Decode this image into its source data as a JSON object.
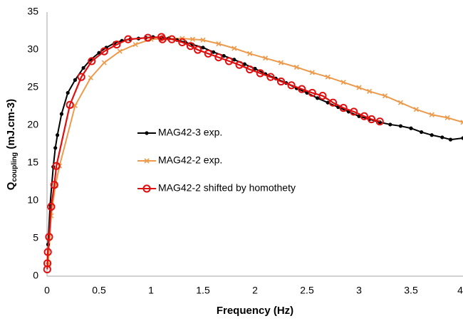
{
  "chart_data": {
    "type": "line",
    "x_label": "Frequency (Hz)",
    "y_label": {
      "main": "Q",
      "sub": "coupling",
      "rest": " (mJ.cm-3)"
    },
    "xlim": [
      0,
      4
    ],
    "ylim": [
      0,
      35
    ],
    "xticks": [
      0,
      0.5,
      1,
      1.5,
      2,
      2.5,
      3,
      3.5,
      4
    ],
    "yticks": [
      0,
      5,
      10,
      15,
      20,
      25,
      30,
      35
    ],
    "grid": false,
    "legend": "center-left",
    "series": [
      {
        "name": "MAG42-3 exp.",
        "color": "#000000",
        "marker": "dot",
        "x": [
          0.01,
          0.03,
          0.06,
          0.08,
          0.1,
          0.14,
          0.2,
          0.27,
          0.35,
          0.42,
          0.5,
          0.57,
          0.65,
          0.72,
          0.8,
          0.88,
          0.95,
          1.02,
          1.1,
          1.17,
          1.25,
          1.33,
          1.4,
          1.5,
          1.6,
          1.7,
          1.8,
          1.9,
          2.0,
          2.1,
          2.2,
          2.3,
          2.4,
          2.5,
          2.6,
          2.7,
          2.8,
          2.9,
          3.0,
          3.1,
          3.2,
          3.3,
          3.4,
          3.5,
          3.6,
          3.7,
          3.8,
          3.88,
          4.0
        ],
        "values": [
          4.2,
          9.5,
          14.5,
          17,
          18.7,
          21.5,
          24.3,
          26,
          27.6,
          28.7,
          29.6,
          30.3,
          30.9,
          31.2,
          31.4,
          31.5,
          31.6,
          31.7,
          31.6,
          31.5,
          31.3,
          31,
          30.7,
          30.3,
          29.7,
          29.2,
          28.7,
          28.1,
          27.5,
          26.8,
          26.2,
          25.6,
          24.9,
          24.3,
          23.6,
          23,
          22.4,
          21.8,
          21.2,
          20.8,
          20.4,
          20.1,
          19.9,
          19.6,
          19.1,
          18.7,
          18.4,
          18.1,
          18.3
        ]
      },
      {
        "name": "MAG42-2 exp.",
        "color": "#ed9a4c",
        "marker": "x",
        "x": [
          0.01,
          0.04,
          0.08,
          0.12,
          0.27,
          0.42,
          0.55,
          0.7,
          0.85,
          1.0,
          1.15,
          1.3,
          1.4,
          1.5,
          1.65,
          1.8,
          1.95,
          2.1,
          2.25,
          2.4,
          2.55,
          2.7,
          2.85,
          3.0,
          3.1,
          3.25,
          3.4,
          3.55,
          3.7,
          3.85,
          4.0
        ],
        "values": [
          1.5,
          8,
          12,
          14.6,
          22.6,
          26.3,
          28.3,
          29.8,
          30.7,
          31.4,
          31.5,
          31.5,
          31.4,
          31.3,
          30.8,
          30.2,
          29.5,
          28.9,
          28.3,
          27.7,
          27.0,
          26.4,
          25.7,
          25.0,
          24.5,
          23.9,
          23.0,
          22.1,
          21.4,
          21.0,
          20.4
        ]
      },
      {
        "name": "MAG42-2 shifted by homothety",
        "color": "#e01010",
        "marker": "open-circle",
        "x": [
          0.002,
          0.004,
          0.008,
          0.02,
          0.04,
          0.07,
          0.09,
          0.22,
          0.33,
          0.43,
          0.55,
          0.67,
          0.78,
          0.97,
          1.1,
          1.11,
          1.2,
          1.3,
          1.38,
          1.45,
          1.55,
          1.65,
          1.75,
          1.85,
          1.95,
          2.05,
          2.15,
          2.25,
          2.35,
          2.45,
          2.55,
          2.65,
          2.75,
          2.85,
          2.95,
          3.05,
          3.12,
          3.2
        ],
        "values": [
          0.9,
          1.7,
          3.2,
          5.2,
          9.2,
          12.1,
          14.6,
          22.7,
          26.4,
          28.5,
          29.8,
          30.7,
          31.4,
          31.6,
          31.7,
          31.4,
          31.4,
          31.0,
          30.5,
          30.0,
          29.5,
          29.0,
          28.5,
          28.0,
          27.4,
          26.9,
          26.4,
          25.8,
          25.3,
          24.8,
          24.3,
          23.9,
          23.0,
          22.3,
          21.8,
          21.2,
          20.8,
          20.5
        ]
      }
    ]
  }
}
